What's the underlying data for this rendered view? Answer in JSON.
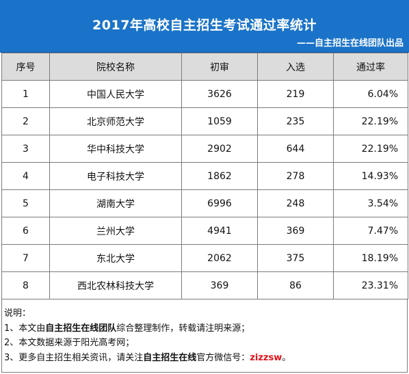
{
  "header": {
    "title": "2017年高校自主招生考试通过率统计",
    "subtitle": "——自主招生在线团队出品"
  },
  "table": {
    "columns": [
      "序号",
      "院校名称",
      "初审",
      "入选",
      "通过率"
    ],
    "rows": [
      {
        "no": "1",
        "school": "中国人民大学",
        "initial": "3626",
        "selected": "219",
        "rate": "6.04%"
      },
      {
        "no": "2",
        "school": "北京师范大学",
        "initial": "1059",
        "selected": "235",
        "rate": "22.19%"
      },
      {
        "no": "3",
        "school": "华中科技大学",
        "initial": "2902",
        "selected": "644",
        "rate": "22.19%"
      },
      {
        "no": "4",
        "school": "电子科技大学",
        "initial": "1862",
        "selected": "278",
        "rate": "14.93%"
      },
      {
        "no": "5",
        "school": "湖南大学",
        "initial": "6996",
        "selected": "248",
        "rate": "3.54%"
      },
      {
        "no": "6",
        "school": "兰州大学",
        "initial": "4941",
        "selected": "369",
        "rate": "7.47%"
      },
      {
        "no": "7",
        "school": "东北大学",
        "initial": "2062",
        "selected": "375",
        "rate": "18.19%"
      },
      {
        "no": "8",
        "school": "西北农林科技大学",
        "initial": "369",
        "selected": "86",
        "rate": "23.31%"
      }
    ]
  },
  "notes": {
    "heading": "说明：",
    "line1": {
      "prefix": "1、本文由",
      "bold": "自主招生在线团队",
      "suffix": "综合整理制作，转载请注明来源；"
    },
    "line2": {
      "text": "2、本文数据来源于阳光高考网；"
    },
    "line3": {
      "prefix": "3、更多自主招生相关资讯，请关注",
      "bold": "自主招生在线",
      "middle": "官方微信号：",
      "wechat": "zizzsw",
      "suffix": "。"
    }
  },
  "colors": {
    "banner": "#1a73c8",
    "header_row": "#dcdcdc",
    "wechat_highlight": "#e0101a"
  }
}
